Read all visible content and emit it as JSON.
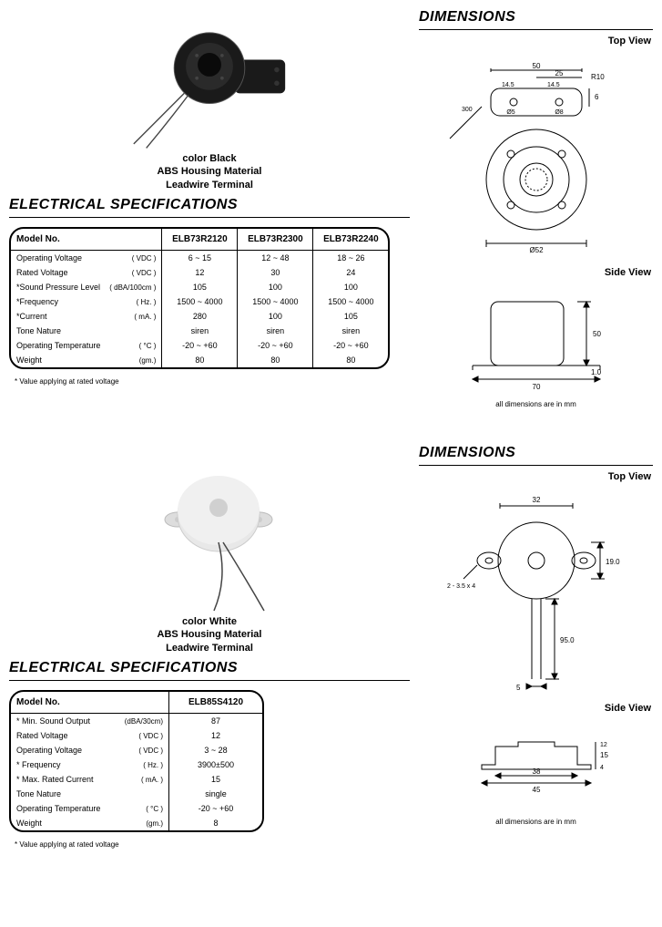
{
  "section1": {
    "elec_heading": "ELECTRICAL SPECIFICATIONS",
    "dim_heading": "DIMENSIONS",
    "top_view": "Top View",
    "side_view": "Side View",
    "caption": "color Black\nABS Housing Material\nLeadwire Terminal",
    "footnote": "* Value applying at rated voltage",
    "dim_note": "all dimensions are in mm",
    "table": {
      "header": "Model No.",
      "models": [
        "ELB73R2120",
        "ELB73R2300",
        "ELB73R2240"
      ],
      "rows": [
        {
          "label": "Operating Voltage",
          "unit": "( VDC )",
          "v": [
            "6 ~ 15",
            "12 ~ 48",
            "18 ~ 26"
          ]
        },
        {
          "label": "Rated Voltage",
          "unit": "( VDC )",
          "v": [
            "12",
            "30",
            "24"
          ]
        },
        {
          "label": "*Sound Pressure Level",
          "unit": "( dBA/100cm )",
          "v": [
            "105",
            "100",
            "100"
          ]
        },
        {
          "label": "*Frequency",
          "unit": "( Hz. )",
          "v": [
            "1500 ~ 4000",
            "1500 ~ 4000",
            "1500 ~ 4000"
          ]
        },
        {
          "label": "*Current",
          "unit": "( mA. )",
          "v": [
            "280",
            "100",
            "105"
          ]
        },
        {
          "label": "Tone Nature",
          "unit": "",
          "v": [
            "siren",
            "siren",
            "siren"
          ]
        },
        {
          "label": "Operating Temperature",
          "unit": "( °C )",
          "v": [
            "-20 ~ +60",
            "-20 ~ +60",
            "-20 ~ +60"
          ]
        },
        {
          "label": "Weight",
          "unit": "(gm.)",
          "v": [
            "80",
            "80",
            "80"
          ]
        }
      ]
    },
    "dims": {
      "d50": "50",
      "d25": "25",
      "d14_5a": "14.5",
      "d14_5b": "14.5",
      "r10": "R10",
      "d6": "6",
      "phi5": "Ø5",
      "phi8": "Ø8",
      "d300": "300",
      "phi52": "Ø52",
      "d70": "70",
      "d50side": "50",
      "d1_0": "1.0"
    }
  },
  "section2": {
    "elec_heading": "ELECTRICAL SPECIFICATIONS",
    "dim_heading": "DIMENSIONS",
    "top_view": "Top View",
    "side_view": "Side View",
    "caption": "color White\nABS Housing Material\nLeadwire Terminal",
    "footnote": "* Value applying at rated voltage",
    "dim_note": "all dimensions are in mm",
    "table": {
      "header": "Model No.",
      "models": [
        "ELB85S4120"
      ],
      "rows": [
        {
          "label": "* Min. Sound Output",
          "unit": "(dBA/30cm)",
          "v": [
            "87"
          ]
        },
        {
          "label": "Rated Voltage",
          "unit": "( VDC )",
          "v": [
            "12"
          ]
        },
        {
          "label": "Operating Voltage",
          "unit": "( VDC )",
          "v": [
            "3 ~ 28"
          ]
        },
        {
          "label": "* Frequency",
          "unit": "( Hz. )",
          "v": [
            "3900±500"
          ]
        },
        {
          "label": "* Max. Rated Current",
          "unit": "( mA. )",
          "v": [
            "15"
          ]
        },
        {
          "label": "Tone Nature",
          "unit": "",
          "v": [
            "single"
          ]
        },
        {
          "label": "Operating Temperature",
          "unit": "( °C )",
          "v": [
            "-20 ~ +60"
          ]
        },
        {
          "label": "Weight",
          "unit": "(gm.)",
          "v": [
            "8"
          ]
        }
      ]
    },
    "dims": {
      "d32": "32",
      "d19": "19.0",
      "slot": "2 - 3.5 x 4",
      "d95": "95.0",
      "d5": "5",
      "d38": "38",
      "d45": "45",
      "d15": "15",
      "d12": "12",
      "d4": "4"
    }
  },
  "colors": {
    "line": "#000000",
    "bg": "#ffffff",
    "product_black": "#1a1a1a",
    "product_white": "#e0e0e0",
    "wire": "#444"
  }
}
